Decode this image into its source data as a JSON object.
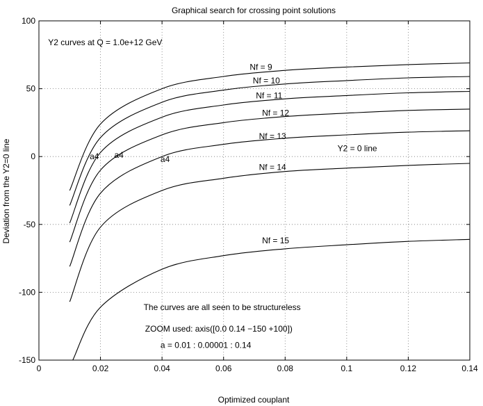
{
  "chart_data": {
    "type": "line",
    "title": "Graphical search for crossing point solutions",
    "xlabel": "Optimized couplant",
    "ylabel": "Deviation from the Y2=0 line",
    "xlim": [
      0,
      0.14
    ],
    "ylim": [
      -150,
      100
    ],
    "xticks": [
      0,
      0.02,
      0.04,
      0.06,
      0.08,
      0.1,
      0.12,
      0.14
    ],
    "xtick_labels": [
      "0",
      "0.02",
      "0.04",
      "0.06",
      "0.08",
      "0.1",
      "0.12",
      "0.14"
    ],
    "yticks": [
      -150,
      -100,
      -50,
      0,
      50,
      100
    ],
    "ytick_labels": [
      "-150",
      "-100",
      "-50",
      "0",
      "50",
      "100"
    ],
    "grid": true,
    "series": [
      {
        "name": "Nf = 9",
        "x": [
          0.01,
          0.02,
          0.04,
          0.06,
          0.08,
          0.1,
          0.12,
          0.14
        ],
        "y": [
          -25,
          24,
          50,
          59,
          63.5,
          66,
          67.8,
          69
        ]
      },
      {
        "name": "Nf = 10",
        "x": [
          0.01,
          0.02,
          0.04,
          0.06,
          0.08,
          0.1,
          0.12,
          0.14
        ],
        "y": [
          -36,
          14,
          40,
          49,
          53.5,
          56,
          58,
          59
        ]
      },
      {
        "name": "Nf = 11",
        "x": [
          0.01,
          0.02,
          0.04,
          0.06,
          0.08,
          0.1,
          0.12,
          0.14
        ],
        "y": [
          -49,
          3,
          29,
          38,
          42.5,
          45,
          47,
          48
        ]
      },
      {
        "name": "Nf = 12",
        "x": [
          0.01,
          0.02,
          0.04,
          0.06,
          0.08,
          0.1,
          0.12,
          0.14
        ],
        "y": [
          -63,
          -10,
          16,
          25,
          29.5,
          32,
          34,
          35
        ]
      },
      {
        "name": "Nf = 13",
        "x": [
          0.01,
          0.02,
          0.04,
          0.06,
          0.08,
          0.1,
          0.12,
          0.14
        ],
        "y": [
          -81,
          -27,
          0,
          9,
          13.5,
          16,
          18,
          19
        ]
      },
      {
        "name": "Nf = 14",
        "x": [
          0.01,
          0.02,
          0.04,
          0.06,
          0.08,
          0.1,
          0.12,
          0.14
        ],
        "y": [
          -107,
          -52,
          -25,
          -16,
          -11,
          -8.5,
          -6.5,
          -5
        ]
      },
      {
        "name": "Nf = 15",
        "x": [
          0.011,
          0.02,
          0.04,
          0.06,
          0.08,
          0.1,
          0.12,
          0.14
        ],
        "y": [
          -150,
          -111,
          -83,
          -73,
          -68,
          -65,
          -62.5,
          -61
        ]
      }
    ],
    "annotations": [
      {
        "text": "Y2 curves at Q = 1.0e+12 GeV",
        "x": 0.003,
        "y": 82
      },
      {
        "text": "Y2 = 0 line",
        "x": 0.097,
        "y": 4
      },
      {
        "text": "a4",
        "x": 0.0165,
        "y": -2
      },
      {
        "text": "a4",
        "x": 0.0245,
        "y": -1
      },
      {
        "text": "a4",
        "x": 0.0395,
        "y": -4
      },
      {
        "text": "The curves are all seen to be structureless",
        "x": 0.034,
        "y": -113
      },
      {
        "text": "ZOOM used: axis([0.0 0.14 −150 +100])",
        "x": 0.0345,
        "y": -129
      },
      {
        "text": "a = 0.01 : 0.00001 : 0.14",
        "x": 0.0395,
        "y": -141
      }
    ],
    "curve_labels": [
      {
        "text": "Nf = 9",
        "x": 0.0685,
        "y": 64
      },
      {
        "text": "Nf = 10",
        "x": 0.0695,
        "y": 54
      },
      {
        "text": "Nf = 11",
        "x": 0.0705,
        "y": 43
      },
      {
        "text": "Nf = 12",
        "x": 0.0725,
        "y": 30
      },
      {
        "text": "Nf = 13",
        "x": 0.0715,
        "y": 13
      },
      {
        "text": "Nf = 14",
        "x": 0.0715,
        "y": -10
      },
      {
        "text": "Nf = 15",
        "x": 0.0725,
        "y": -64
      }
    ]
  }
}
